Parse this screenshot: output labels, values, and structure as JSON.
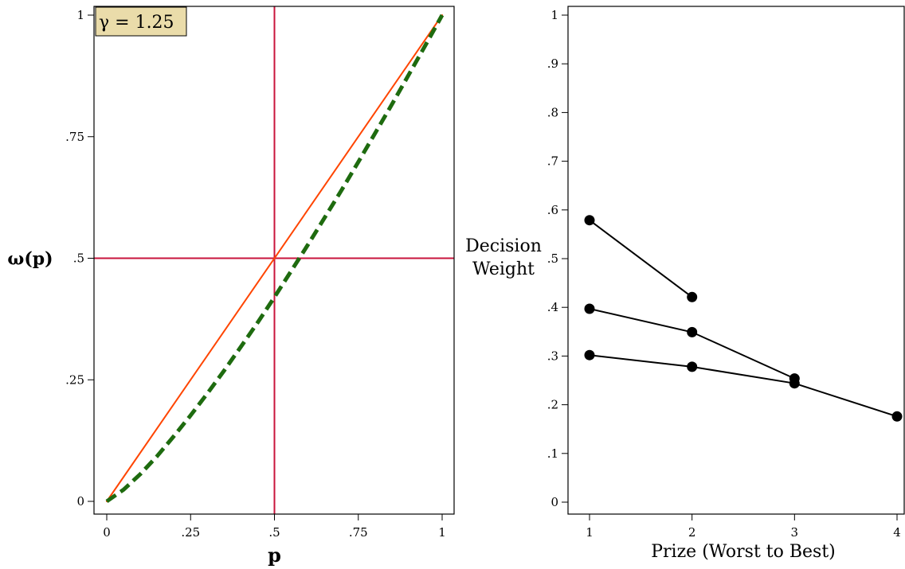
{
  "chart_data": [
    {
      "type": "line",
      "annotation": "γ = 1.25",
      "xlabel": "p",
      "ylabel": "ω(p)",
      "xlim": [
        0,
        1
      ],
      "ylim": [
        0,
        1
      ],
      "x_ticks": [
        0,
        0.25,
        0.5,
        0.75,
        1
      ],
      "x_tick_labels": [
        "0",
        ".25",
        ".5",
        ".75",
        "1"
      ],
      "y_ticks": [
        0,
        0.25,
        0.5,
        0.75,
        1
      ],
      "y_tick_labels": [
        "0",
        ".25",
        ".5",
        ".75",
        "1"
      ],
      "reference_lines": {
        "x": 0.5,
        "y": 0.5
      },
      "grid": false,
      "series": [
        {
          "style": "solid",
          "color": "#ff4500",
          "x": [
            0,
            1
          ],
          "y": [
            0,
            1
          ]
        },
        {
          "style": "dashed",
          "color": "#1e6b0f",
          "x": [
            0,
            0.05,
            0.1,
            0.15,
            0.2,
            0.25,
            0.3,
            0.35,
            0.4,
            0.45,
            0.5,
            0.55,
            0.6,
            0.65,
            0.7,
            0.75,
            0.8,
            0.85,
            0.9,
            0.95,
            1
          ],
          "y": [
            0,
            0.024,
            0.056,
            0.093,
            0.134,
            0.177,
            0.222,
            0.269,
            0.318,
            0.368,
            0.42,
            0.474,
            0.528,
            0.584,
            0.64,
            0.698,
            0.757,
            0.816,
            0.877,
            0.938,
            1
          ]
        }
      ],
      "colors": {
        "reference": "#c8143c",
        "annotation_bg": "#eadcaa"
      }
    },
    {
      "type": "line",
      "xlabel": "Prize (Worst to Best)",
      "ylabel": "Decision Weight",
      "xlim": [
        1,
        4
      ],
      "ylim": [
        0,
        1
      ],
      "x_ticks": [
        1,
        2,
        3,
        4
      ],
      "x_tick_labels": [
        "1",
        "2",
        "3",
        "4"
      ],
      "y_ticks": [
        0,
        0.1,
        0.2,
        0.3,
        0.4,
        0.5,
        0.6,
        0.7,
        0.8,
        0.9,
        1
      ],
      "y_tick_labels": [
        "0",
        ".1",
        ".2",
        ".3",
        ".4",
        ".5",
        ".6",
        ".7",
        ".8",
        ".9",
        "1"
      ],
      "grid": false,
      "series": [
        {
          "x": [
            1,
            2
          ],
          "y": [
            0.579,
            0.421
          ]
        },
        {
          "x": [
            1,
            2,
            3
          ],
          "y": [
            0.397,
            0.349,
            0.254
          ]
        },
        {
          "x": [
            1,
            2,
            3,
            4
          ],
          "y": [
            0.302,
            0.278,
            0.244,
            0.176
          ]
        }
      ],
      "colors": {
        "line": "#000000",
        "marker": "#000000"
      }
    }
  ]
}
